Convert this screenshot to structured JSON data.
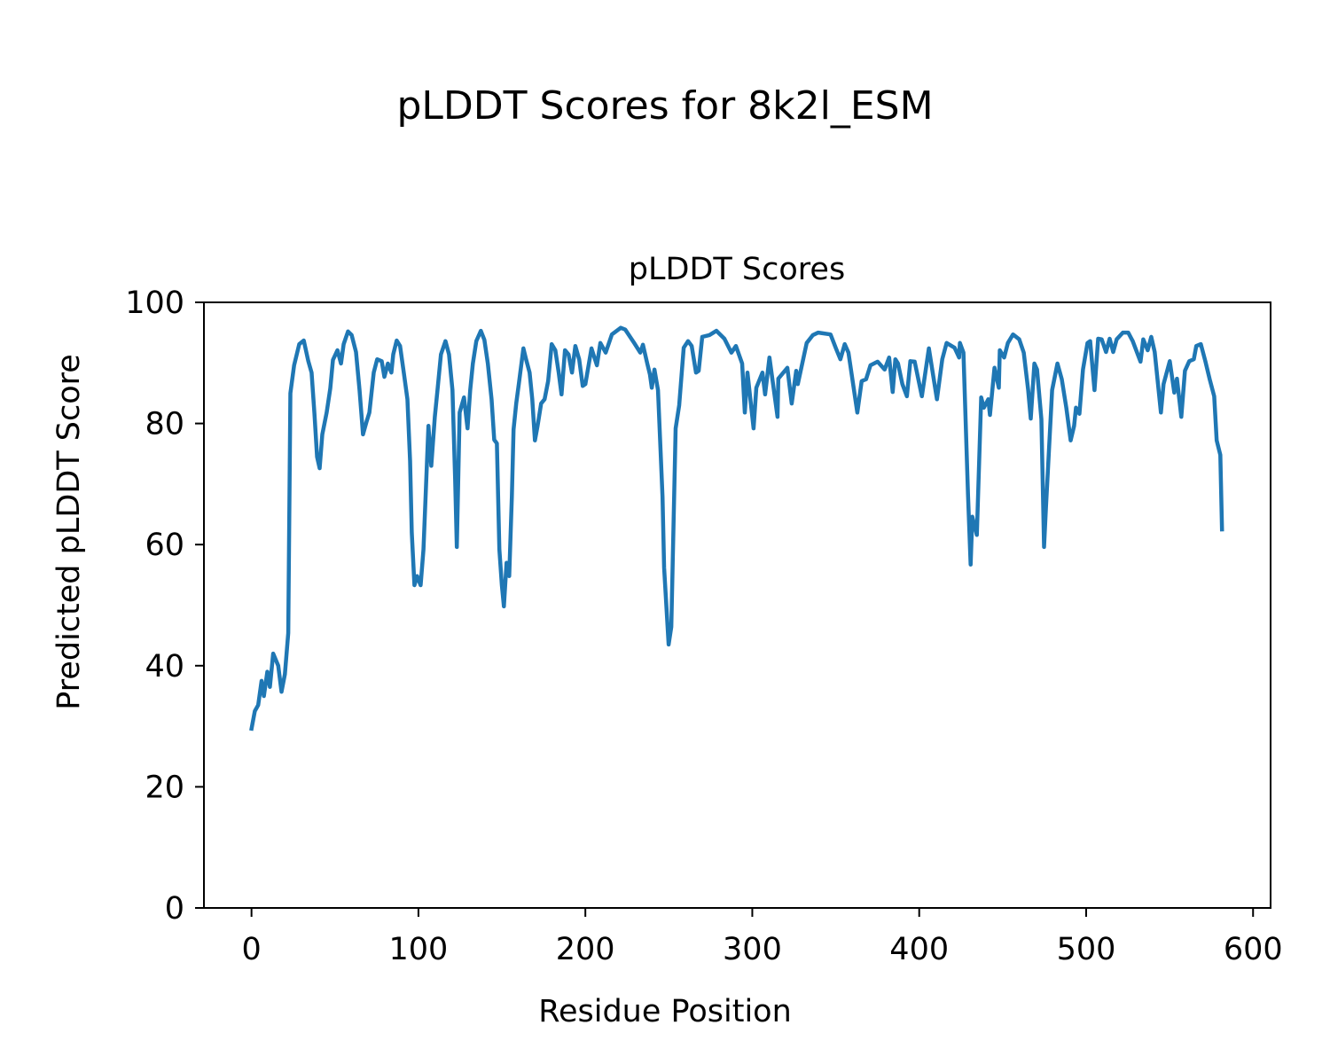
{
  "figure_title": "pLDDT Scores for 8k2l_ESM",
  "chart_data": {
    "type": "line",
    "title": "pLDDT Scores",
    "xlabel": "Residue Position",
    "ylabel": "Predicted pLDDT Score",
    "xlim": [
      -28.5,
      610.5
    ],
    "ylim": [
      0,
      100
    ],
    "xticks": [
      0,
      100,
      200,
      300,
      400,
      500,
      600
    ],
    "yticks": [
      0,
      20,
      40,
      60,
      80,
      100
    ],
    "grid": false,
    "color": "#1f77b4",
    "series": [
      {
        "name": "pLDDT",
        "x": [
          0,
          2,
          4,
          6,
          7.4,
          9.5,
          11,
          13,
          16,
          18,
          20,
          22,
          23.3,
          25.5,
          28.6,
          31.3,
          34,
          36,
          37.7,
          39.3,
          40.8,
          42.4,
          45,
          47.2,
          48.8,
          51.5,
          53.6,
          55.2,
          57.8,
          60,
          62.6,
          64.7,
          66.8,
          69,
          70.6,
          73.2,
          75.3,
          78,
          79.6,
          81.7,
          83.8,
          84.9,
          87,
          89,
          91.2,
          93.4,
          95,
          96,
          97.6,
          99.2,
          101.3,
          103,
          104.5,
          106,
          107.7,
          109.8,
          111.4,
          113.5,
          116.2,
          118.3,
          120.4,
          122,
          123,
          124.7,
          127.3,
          129.4,
          131,
          132.6,
          134.7,
          137.4,
          139.5,
          141.6,
          143.8,
          145.4,
          147,
          148.5,
          150,
          151.2,
          152.8,
          154.4,
          156,
          157,
          158.6,
          160.2,
          162.9,
          164.5,
          166.6,
          168.2,
          169.8,
          171.4,
          173.5,
          175.6,
          177.7,
          179.8,
          182,
          184,
          185.7,
          187.8,
          189.9,
          192,
          194,
          196.3,
          198.4,
          200,
          203.7,
          206.9,
          209,
          212.2,
          215.9,
          221.2,
          223.9,
          229.2,
          232.9,
          234.5,
          237.1,
          238.7,
          239.8,
          241.4,
          243.5,
          246.2,
          247.2,
          249.9,
          251.5,
          254.1,
          256.2,
          258.9,
          261.5,
          263.7,
          266.3,
          267.9,
          270,
          274.3,
          278.5,
          283.3,
          287.5,
          290.2,
          293.9,
          295.5,
          297.1,
          300.8,
          302.4,
          306.1,
          307.7,
          310.3,
          315.1,
          315.6,
          321,
          323.6,
          326.3,
          327.3,
          332.6,
          336.3,
          339.5,
          346.9,
          350.1,
          352.8,
          355.4,
          357.6,
          362.9,
          365.5,
          368.2,
          370.8,
          375.1,
          379.3,
          382,
          384.1,
          385.7,
          387.3,
          389.9,
          392.6,
          394.7,
          397.3,
          401.6,
          405.8,
          410.6,
          413.8,
          416.4,
          421.2,
          423.9,
          424.4,
          426.5,
          429.2,
          430.8,
          431.8,
          434.5,
          437.1,
          438.7,
          441.4,
          442.4,
          445.1,
          447.7,
          448.3,
          450.9,
          453.1,
          456.2,
          459.9,
          462.6,
          465.3,
          466.8,
          469,
          470.6,
          473.2,
          474.8,
          475.9,
          479.6,
          482.8,
          485.4,
          488.1,
          490.7,
          492.8,
          493.9,
          496,
          498.1,
          500.8,
          502.4,
          505,
          507.2,
          509.3,
          511.9,
          514.1,
          516.2,
          518.3,
          522,
          525.2,
          527.9,
          532.6,
          534.2,
          536.9,
          539,
          541.1,
          544.8,
          546.4,
          550.1,
          552.8,
          554.4,
          557,
          559.2,
          561.8,
          564.5,
          566,
          568.7,
          571.4,
          574,
          576.7,
          578.2,
          580.4,
          581.4
        ],
        "y": [
          29.6,
          32.5,
          33.5,
          37.5,
          35,
          39,
          36.5,
          42,
          40,
          35.7,
          38.6,
          45.4,
          85,
          89.6,
          93.1,
          93.7,
          90.3,
          88.4,
          81.7,
          74.5,
          72.6,
          78.2,
          81.8,
          85.8,
          90.5,
          92.1,
          89.9,
          93.1,
          95.2,
          94.6,
          91.8,
          85.5,
          78.2,
          80.4,
          81.8,
          88.4,
          90.6,
          90.3,
          87.7,
          89.9,
          88.4,
          91.4,
          93.7,
          92.8,
          88.4,
          84,
          73.8,
          62,
          53.3,
          54.8,
          53.3,
          59.2,
          69.4,
          79.6,
          73,
          81.1,
          85.5,
          91.4,
          93.6,
          91.4,
          85.5,
          70.9,
          59.6,
          81.8,
          84.3,
          79.2,
          85.5,
          89.9,
          93.6,
          95.3,
          93.8,
          89.9,
          84,
          77.3,
          76.7,
          59.2,
          53.3,
          49.8,
          57,
          54.8,
          68,
          79,
          83.3,
          86.7,
          92.4,
          90.6,
          88.4,
          84,
          77.2,
          79.6,
          83.3,
          84,
          87,
          93.1,
          92.1,
          88.4,
          84.8,
          92.1,
          91.4,
          88.4,
          92.8,
          90.6,
          86.2,
          86.5,
          92.4,
          89.6,
          93.3,
          91.7,
          94.7,
          95.8,
          95.5,
          93.3,
          91.7,
          93,
          89.9,
          88.1,
          85.9,
          88.9,
          85.5,
          67.9,
          56.2,
          43.5,
          46.4,
          79.2,
          83,
          92.5,
          93.6,
          92.8,
          88.4,
          88.7,
          94.3,
          94.6,
          95.3,
          94,
          91.7,
          92.8,
          89.9,
          81.8,
          88.4,
          79.2,
          85.9,
          88.4,
          84.8,
          90.9,
          81.1,
          87.4,
          89.2,
          83.3,
          88.7,
          86.5,
          93.3,
          94.6,
          95,
          94.7,
          92.4,
          90.6,
          93.1,
          91.7,
          81.8,
          87,
          87.3,
          89.6,
          90.2,
          88.9,
          90.9,
          85.2,
          90.6,
          89.9,
          86.5,
          84.5,
          90.3,
          90.2,
          84.5,
          92.4,
          84,
          90.6,
          93.3,
          92.5,
          90.9,
          93.3,
          91.7,
          68.4,
          56.7,
          64.6,
          61.6,
          84.3,
          82.6,
          84,
          81.4,
          89.2,
          85.9,
          92.1,
          90.9,
          93.3,
          94.7,
          93.9,
          91.7,
          85.5,
          80.8,
          89.9,
          88.9,
          80.7,
          59.6,
          66,
          85.5,
          89.9,
          87.3,
          82.6,
          77.2,
          79.6,
          82.6,
          81.6,
          88.9,
          93.3,
          93.6,
          85.5,
          94,
          93.9,
          91.8,
          94,
          91.8,
          93.9,
          95,
          95,
          93.6,
          90.2,
          93.9,
          92.1,
          94.3,
          91.8,
          81.8,
          86.5,
          90.3,
          85.1,
          87.4,
          81.1,
          88.7,
          90.3,
          90.6,
          92.8,
          93.1,
          90.3,
          87.3,
          84.5,
          77.2,
          74.8,
          62.5
        ]
      }
    ]
  }
}
